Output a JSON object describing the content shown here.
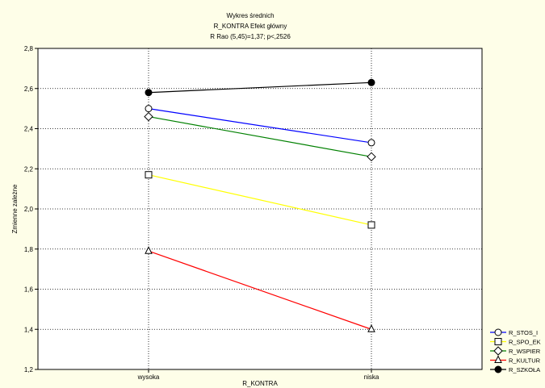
{
  "chart_data": {
    "type": "line",
    "title": "Wykres średnich",
    "subtitle": "R_KONTRA Efekt główny",
    "test": "R Rao (5,45)=1,37; p<,2526",
    "xlabel": "R_KONTRA",
    "ylabel": "Zmienne zależne",
    "categories": [
      "wysoka",
      "niska"
    ],
    "ylim": [
      1.2,
      2.8
    ],
    "yticks": [
      "1,2",
      "1,4",
      "1,6",
      "1,8",
      "2,0",
      "2,2",
      "2,4",
      "2,6",
      "2,8"
    ],
    "grid": true,
    "legend_position": "bottom-right",
    "series": [
      {
        "name": "R_STOS_I",
        "values": [
          2.5,
          2.33
        ],
        "color": "#0000ff",
        "marker": "circle-open"
      },
      {
        "name": "R_SPO_EK",
        "values": [
          2.17,
          1.92
        ],
        "color": "#ffff00",
        "marker": "square-open"
      },
      {
        "name": "R_WSPIER",
        "values": [
          2.46,
          2.26
        ],
        "color": "#008000",
        "marker": "diamond-open"
      },
      {
        "name": "R_KULTUR",
        "values": [
          1.79,
          1.4
        ],
        "color": "#ff0000",
        "marker": "triangle-open"
      },
      {
        "name": "R_SZKOŁA",
        "values": [
          2.58,
          2.63
        ],
        "color": "#000000",
        "marker": "circle-filled"
      }
    ]
  }
}
